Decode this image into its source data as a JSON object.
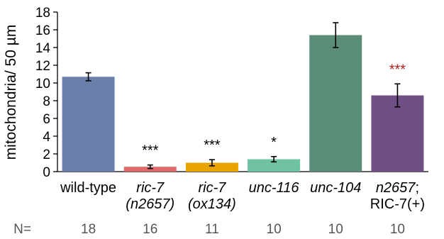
{
  "chart_data": {
    "type": "bar",
    "title": "",
    "ylabel": "mitochondria/ 50 µm",
    "ylim": [
      0,
      18
    ],
    "yticks": [
      "0",
      "2",
      "4",
      "6",
      "8",
      "10",
      "12",
      "14",
      "16",
      "18"
    ],
    "categories": [
      {
        "lines": [
          [
            {
              "t": "wild-type",
              "i": false
            }
          ]
        ]
      },
      {
        "lines": [
          [
            {
              "t": "ric-7",
              "i": true
            }
          ],
          [
            {
              "t": "(n2657)",
              "i": true
            }
          ]
        ]
      },
      {
        "lines": [
          [
            {
              "t": "ric-7",
              "i": true
            }
          ],
          [
            {
              "t": "(ox134)",
              "i": true
            }
          ]
        ]
      },
      {
        "lines": [
          [
            {
              "t": "unc-116",
              "i": true
            }
          ]
        ]
      },
      {
        "lines": [
          [
            {
              "t": "unc-104",
              "i": true
            }
          ]
        ]
      },
      {
        "lines": [
          [
            {
              "t": "n2657",
              "i": true
            },
            {
              "t": ";",
              "i": false
            }
          ],
          [
            {
              "t": "RIC-7(+)",
              "i": false
            }
          ]
        ]
      }
    ],
    "values": [
      10.7,
      0.55,
      1.0,
      1.4,
      15.4,
      8.6
    ],
    "errors": [
      0.45,
      0.2,
      0.35,
      0.3,
      1.4,
      1.3
    ],
    "colors": [
      "#6a80aa",
      "#e06a6a",
      "#e8a400",
      "#6fc3a3",
      "#5a8c78",
      "#6f4f86"
    ],
    "significance": [
      "",
      "***",
      "***",
      "*",
      "",
      "***"
    ],
    "significance_colors": [
      "#000000",
      "#000000",
      "#000000",
      "#000000",
      "#000000",
      "#b22222"
    ],
    "n_label": "N=",
    "n_values": [
      "18",
      "16",
      "11",
      "10",
      "10",
      "10"
    ]
  }
}
